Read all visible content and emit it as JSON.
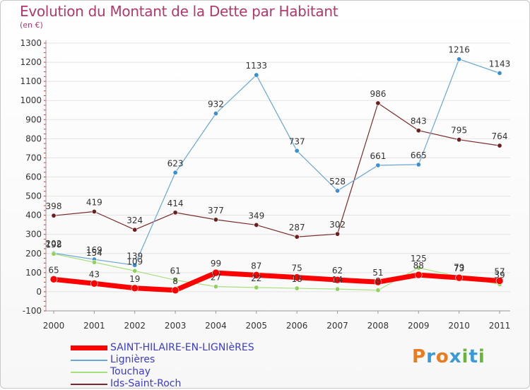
{
  "header": {
    "title": "Evolution du Montant de la Dette par Habitant",
    "unit": "(en €)"
  },
  "logo": {
    "text": "Proxiti",
    "colors": [
      "#e87c1e",
      "#3a9ad9",
      "#e87c1e",
      "#3a9ad9",
      "#6ab536",
      "#3a9ad9",
      "#6ab536"
    ]
  },
  "chart_data": {
    "type": "line",
    "x": [
      "2000",
      "2001",
      "2002",
      "2003",
      "2004",
      "2005",
      "2006",
      "2007",
      "2008",
      "2009",
      "2010",
      "2011"
    ],
    "ylim": [
      -100,
      1300
    ],
    "yticks": [
      -100,
      0,
      100,
      200,
      300,
      400,
      500,
      600,
      700,
      800,
      900,
      1000,
      1100,
      1200,
      1300
    ],
    "grid": "horizontal",
    "legend_position": "bottom-left",
    "series": [
      {
        "name": "SAINT-HILAIRE-EN-LIGNIèRES",
        "color": "#ff0000",
        "width": 7,
        "point_color": "#ff0000",
        "values": [
          65,
          43,
          19,
          8,
          99,
          87,
          75,
          62,
          51,
          88,
          73,
          57
        ],
        "labels": [
          "65",
          "43",
          "19",
          "8",
          "99",
          "87",
          "75",
          "62",
          "51",
          "88",
          "73",
          "57"
        ]
      },
      {
        "name": "Lignières",
        "color": "#6aa6d6",
        "width": 1.2,
        "point_color": "#3d8fcf",
        "values": [
          202,
          169,
          139,
          623,
          932,
          1133,
          737,
          528,
          661,
          665,
          1216,
          1143
        ],
        "labels": [
          "202",
          "169",
          "139",
          "623",
          "932",
          "1133",
          "737",
          "528",
          "661",
          "665",
          "1216",
          "1143"
        ]
      },
      {
        "name": "Touchay",
        "color": "#a5e07a",
        "width": 1.2,
        "point_color": "#8fd15c",
        "values": [
          198,
          154,
          109,
          61,
          27,
          22,
          18,
          14,
          8,
          125,
          79,
          39
        ],
        "labels": [
          "198",
          "154",
          "109",
          "61",
          "27",
          "22",
          "18",
          "14",
          "8",
          "125",
          "79",
          "39"
        ]
      },
      {
        "name": "Ids-Saint-Roch",
        "color": "#7a2a2a",
        "width": 1.2,
        "point_color": "#6b1f1f",
        "values": [
          398,
          419,
          324,
          414,
          377,
          349,
          287,
          302,
          986,
          843,
          795,
          764
        ],
        "labels": [
          "398",
          "419",
          "324",
          "414",
          "377",
          "349",
          "287",
          "302",
          "986",
          "843",
          "795",
          "764"
        ]
      }
    ]
  }
}
